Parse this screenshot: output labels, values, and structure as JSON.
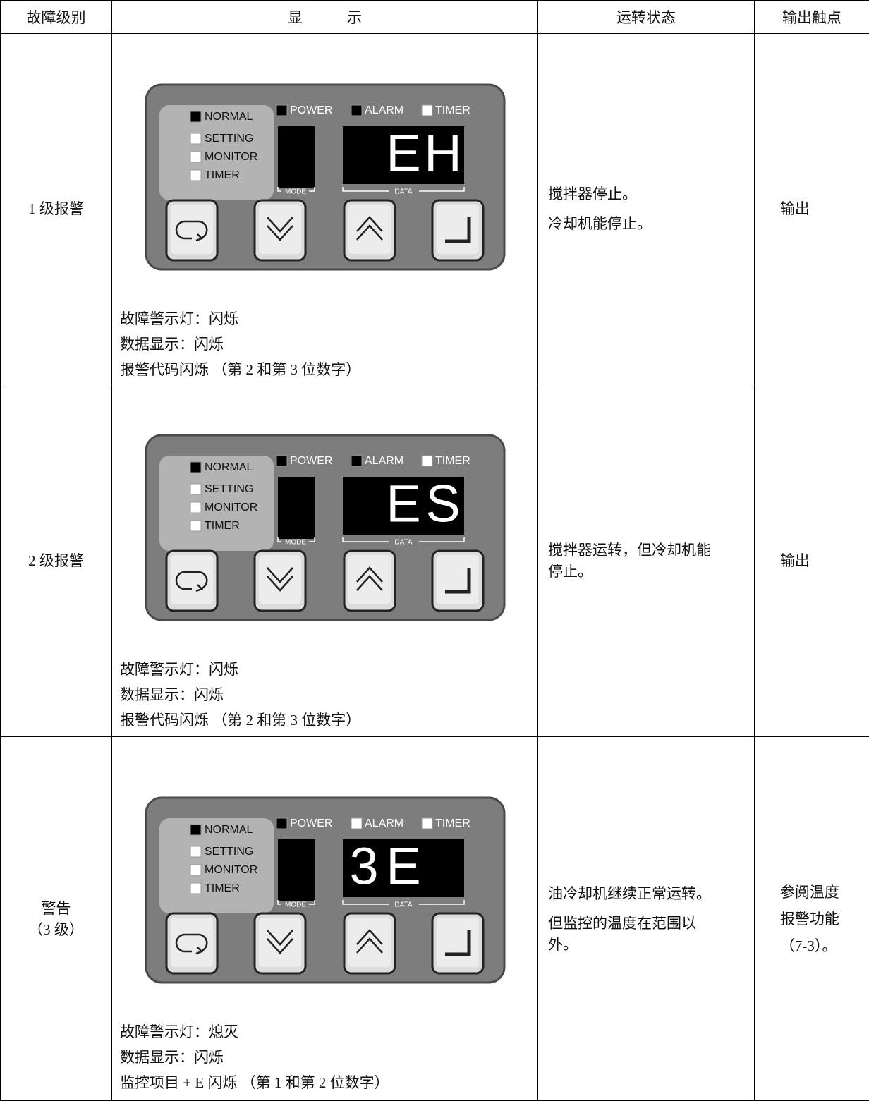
{
  "table": {
    "header": [
      "故障级别",
      "显　　　示",
      "运转状态",
      "输出触点"
    ],
    "rows": [
      {
        "level": [
          "1 级报警"
        ],
        "display": {
          "digits": [
            null,
            "E",
            "H"
          ],
          "alarm_lamp_lit": true
        },
        "notes": [
          "故障警示灯：闪烁",
          "数据显示：闪烁",
          "报警代码闪烁 （第 2 和第 3 位数字）"
        ],
        "operation": [
          "搅拌器停止。",
          "冷却机能停止。"
        ],
        "output": "输出"
      },
      {
        "level": [
          "2 级报警"
        ],
        "display": {
          "digits": [
            null,
            "E",
            "S"
          ],
          "alarm_lamp_lit": true
        },
        "notes": [
          "故障警示灯：闪烁",
          "数据显示：闪烁",
          "报警代码闪烁 （第 2 和第 3 位数字）"
        ],
        "operation": [
          "搅拌器运转，但冷却机能停止。"
        ],
        "output": "输出"
      },
      {
        "level": [
          "警告",
          "（3 级）"
        ],
        "display": {
          "digits": [
            "3",
            "E",
            null
          ],
          "alarm_lamp_lit": false
        },
        "notes": [
          "故障警示灯：熄灭",
          "数据显示：闪烁",
          "监控项目 + E 闪烁 （第 1 和第 2 位数字）"
        ],
        "operation": [
          "油冷却机继续正常运转。",
          "但监控的温度在范围以外。"
        ],
        "output": "参阅温度报警功能（7-3）。"
      }
    ]
  },
  "panel": {
    "mode_lamps": [
      "NORMAL",
      "SETTING",
      "MONITOR",
      "TIMER"
    ],
    "status_lamps": [
      "POWER",
      "ALARM",
      "TIMER"
    ],
    "mode_label": "MODE",
    "data_label": "DATA"
  }
}
